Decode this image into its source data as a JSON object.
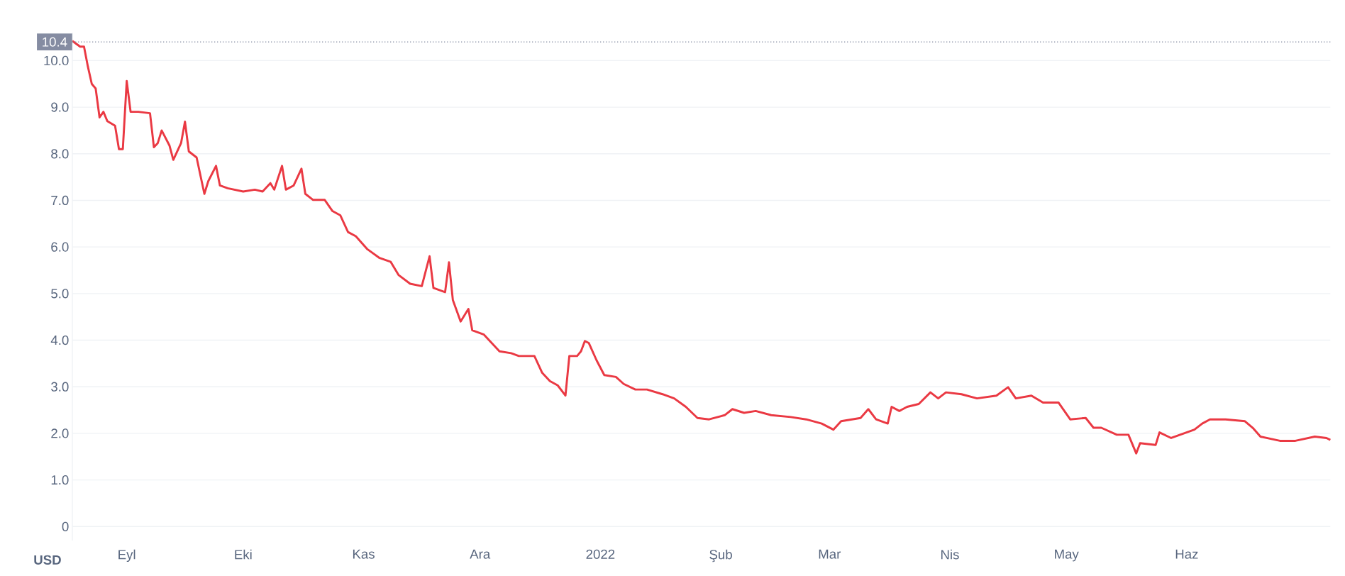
{
  "chart_data": {
    "type": "line",
    "ylabel": "USD",
    "color": "#ea3943",
    "grid": "y",
    "x": [
      "2021-08-18",
      "2021-08-20",
      "2021-08-21",
      "2021-08-22",
      "2021-08-23",
      "2021-08-24",
      "2021-08-25",
      "2021-08-26",
      "2021-08-27",
      "2021-08-29",
      "2021-08-30",
      "2021-08-31",
      "2021-09-01",
      "2021-09-02",
      "2021-09-04",
      "2021-09-07",
      "2021-09-08",
      "2021-09-09",
      "2021-09-10",
      "2021-09-12",
      "2021-09-13",
      "2021-09-15",
      "2021-09-16",
      "2021-09-17",
      "2021-09-19",
      "2021-09-21",
      "2021-09-22",
      "2021-09-24",
      "2021-09-25",
      "2021-09-27",
      "2021-10-01",
      "2021-10-04",
      "2021-10-06",
      "2021-10-08",
      "2021-10-09",
      "2021-10-11",
      "2021-10-12",
      "2021-10-14",
      "2021-10-16",
      "2021-10-17",
      "2021-10-19",
      "2021-10-22",
      "2021-10-24",
      "2021-10-26",
      "2021-10-28",
      "2021-10-30",
      "2021-11-02",
      "2021-11-05",
      "2021-11-08",
      "2021-11-10",
      "2021-11-13",
      "2021-11-16",
      "2021-11-18",
      "2021-11-19",
      "2021-11-22",
      "2021-11-23",
      "2021-11-24",
      "2021-11-26",
      "2021-11-28",
      "2021-11-29",
      "2021-12-02",
      "2021-12-04",
      "2021-12-06",
      "2021-12-09",
      "2021-12-11",
      "2021-12-15",
      "2021-12-17",
      "2021-12-19",
      "2021-12-21",
      "2021-12-23",
      "2021-12-24",
      "2021-12-26",
      "2021-12-27",
      "2021-12-28",
      "2021-12-29",
      "2021-12-31",
      "2022-01-02",
      "2022-01-05",
      "2022-01-07",
      "2022-01-10",
      "2022-01-13",
      "2022-01-17",
      "2022-01-20",
      "2022-01-23",
      "2022-01-26",
      "2022-01-29",
      "2022-02-02",
      "2022-02-04",
      "2022-02-07",
      "2022-02-10",
      "2022-02-14",
      "2022-02-19",
      "2022-02-23",
      "2022-02-27",
      "2022-03-02",
      "2022-03-04",
      "2022-03-09",
      "2022-03-11",
      "2022-03-13",
      "2022-03-16",
      "2022-03-17",
      "2022-03-19",
      "2022-03-21",
      "2022-03-24",
      "2022-03-27",
      "2022-03-29",
      "2022-03-31",
      "2022-04-04",
      "2022-04-08",
      "2022-04-13",
      "2022-04-16",
      "2022-04-18",
      "2022-04-22",
      "2022-04-25",
      "2022-04-29",
      "2022-05-02",
      "2022-05-06",
      "2022-05-08",
      "2022-05-10",
      "2022-05-14",
      "2022-05-17",
      "2022-05-19",
      "2022-05-20",
      "2022-05-24",
      "2022-05-25",
      "2022-05-28",
      "2022-06-03",
      "2022-06-05",
      "2022-06-07",
      "2022-06-11",
      "2022-06-16",
      "2022-06-18",
      "2022-06-20",
      "2022-06-25",
      "2022-06-29",
      "2022-07-04",
      "2022-07-07",
      "2022-07-08"
    ],
    "values": [
      10.42,
      10.3,
      10.3,
      9.87,
      9.5,
      9.4,
      8.78,
      8.9,
      8.7,
      8.6,
      8.1,
      8.1,
      9.56,
      8.9,
      8.9,
      8.87,
      8.14,
      8.23,
      8.5,
      8.18,
      7.87,
      8.23,
      8.69,
      8.05,
      7.92,
      7.14,
      7.41,
      7.74,
      7.32,
      7.26,
      7.19,
      7.23,
      7.19,
      7.37,
      7.23,
      7.74,
      7.23,
      7.32,
      7.68,
      7.14,
      7.01,
      7.01,
      6.77,
      6.68,
      6.32,
      6.23,
      5.95,
      5.77,
      5.68,
      5.4,
      5.21,
      5.16,
      5.8,
      5.12,
      5.03,
      5.67,
      4.86,
      4.4,
      4.67,
      4.21,
      4.12,
      3.94,
      3.76,
      3.72,
      3.66,
      3.66,
      3.3,
      3.12,
      3.03,
      2.81,
      3.66,
      3.66,
      3.76,
      3.98,
      3.94,
      3.57,
      3.25,
      3.21,
      3.06,
      2.94,
      2.94,
      2.84,
      2.75,
      2.57,
      2.33,
      2.3,
      2.39,
      2.52,
      2.44,
      2.48,
      2.39,
      2.35,
      2.3,
      2.21,
      2.08,
      2.26,
      2.33,
      2.52,
      2.3,
      2.21,
      2.57,
      2.48,
      2.57,
      2.63,
      2.88,
      2.75,
      2.88,
      2.84,
      2.75,
      2.81,
      2.99,
      2.75,
      2.81,
      2.66,
      2.66,
      2.3,
      2.33,
      2.12,
      2.12,
      1.97,
      1.97,
      1.57,
      1.79,
      1.75,
      2.02,
      1.9,
      2.08,
      2.21,
      2.3,
      2.3,
      2.26,
      2.12,
      1.93,
      1.84,
      1.84,
      1.93,
      1.9,
      1.86
    ],
    "xlim": [
      "2021-08-18",
      "2022-07-08"
    ],
    "xticks": [
      {
        "value": "2021-09-01",
        "label": "Eyl"
      },
      {
        "value": "2021-10-01",
        "label": "Eki"
      },
      {
        "value": "2021-11-01",
        "label": "Kas"
      },
      {
        "value": "2021-12-01",
        "label": "Ara"
      },
      {
        "value": "2022-01-01",
        "label": "2022"
      },
      {
        "value": "2022-02-01",
        "label": "Şub"
      },
      {
        "value": "2022-03-01",
        "label": "Mar"
      },
      {
        "value": "2022-04-01",
        "label": "Nis"
      },
      {
        "value": "2022-05-01",
        "label": "May"
      },
      {
        "value": "2022-06-01",
        "label": "Haz"
      }
    ],
    "ylim": [
      -0.3,
      10.6
    ],
    "yticks": [
      0,
      {
        "value": 1,
        "label": "1.0"
      },
      {
        "value": 2,
        "label": "2.0"
      },
      {
        "value": 3,
        "label": "3.0"
      },
      {
        "value": 4,
        "label": "4.0"
      },
      {
        "value": 5,
        "label": "5.0"
      },
      {
        "value": 6,
        "label": "6.0"
      },
      {
        "value": 7,
        "label": "7.0"
      },
      {
        "value": 8,
        "label": "8.0"
      },
      {
        "value": 9,
        "label": "9.0"
      },
      {
        "value": 10,
        "label": "10.0"
      }
    ],
    "ref_lines": [
      {
        "axis": "y",
        "value": 10.4,
        "label": "10.4",
        "color": "#858ca2",
        "line_style": "dotted"
      }
    ]
  }
}
